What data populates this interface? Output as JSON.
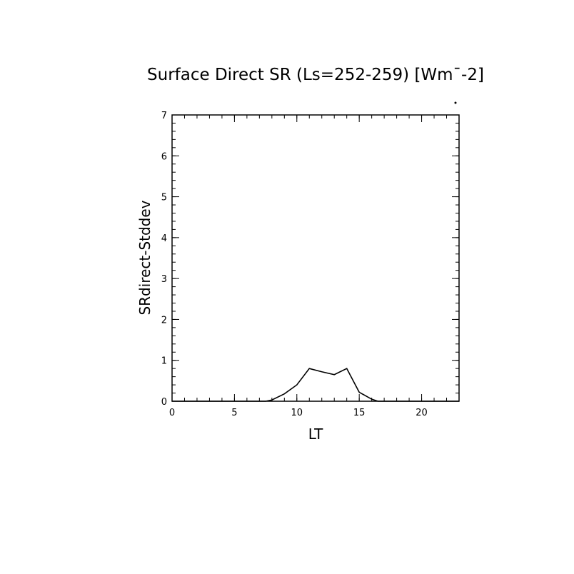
{
  "chart_data": {
    "type": "line",
    "title": "Surface Direct SR (Ls=252-259) [Wm¯-2]",
    "xlabel": "LT",
    "ylabel": "SRdirect-Stddev",
    "xlim": [
      0,
      23
    ],
    "ylim": [
      0,
      7
    ],
    "x_ticks": [
      0,
      5,
      10,
      15,
      20
    ],
    "y_ticks": [
      0,
      1,
      2,
      3,
      4,
      5,
      6,
      7
    ],
    "x_minor_step": 1,
    "y_minor_step": 0.2,
    "grid": false,
    "legend": "none",
    "line_color": "#000000",
    "series": [
      {
        "x": [
          0,
          1,
          2,
          3,
          4,
          5,
          6,
          7,
          7.5,
          8,
          9,
          10,
          11,
          12,
          13,
          14,
          15,
          16,
          16.5,
          17,
          18,
          19,
          20,
          21,
          22,
          23
        ],
        "y": [
          0,
          0,
          0,
          0,
          0,
          0,
          0,
          0,
          0,
          0.03,
          0.18,
          0.4,
          0.8,
          0.72,
          0.65,
          0.8,
          0.22,
          0.05,
          0,
          0,
          0,
          0,
          0,
          0,
          0,
          0
        ]
      }
    ]
  }
}
